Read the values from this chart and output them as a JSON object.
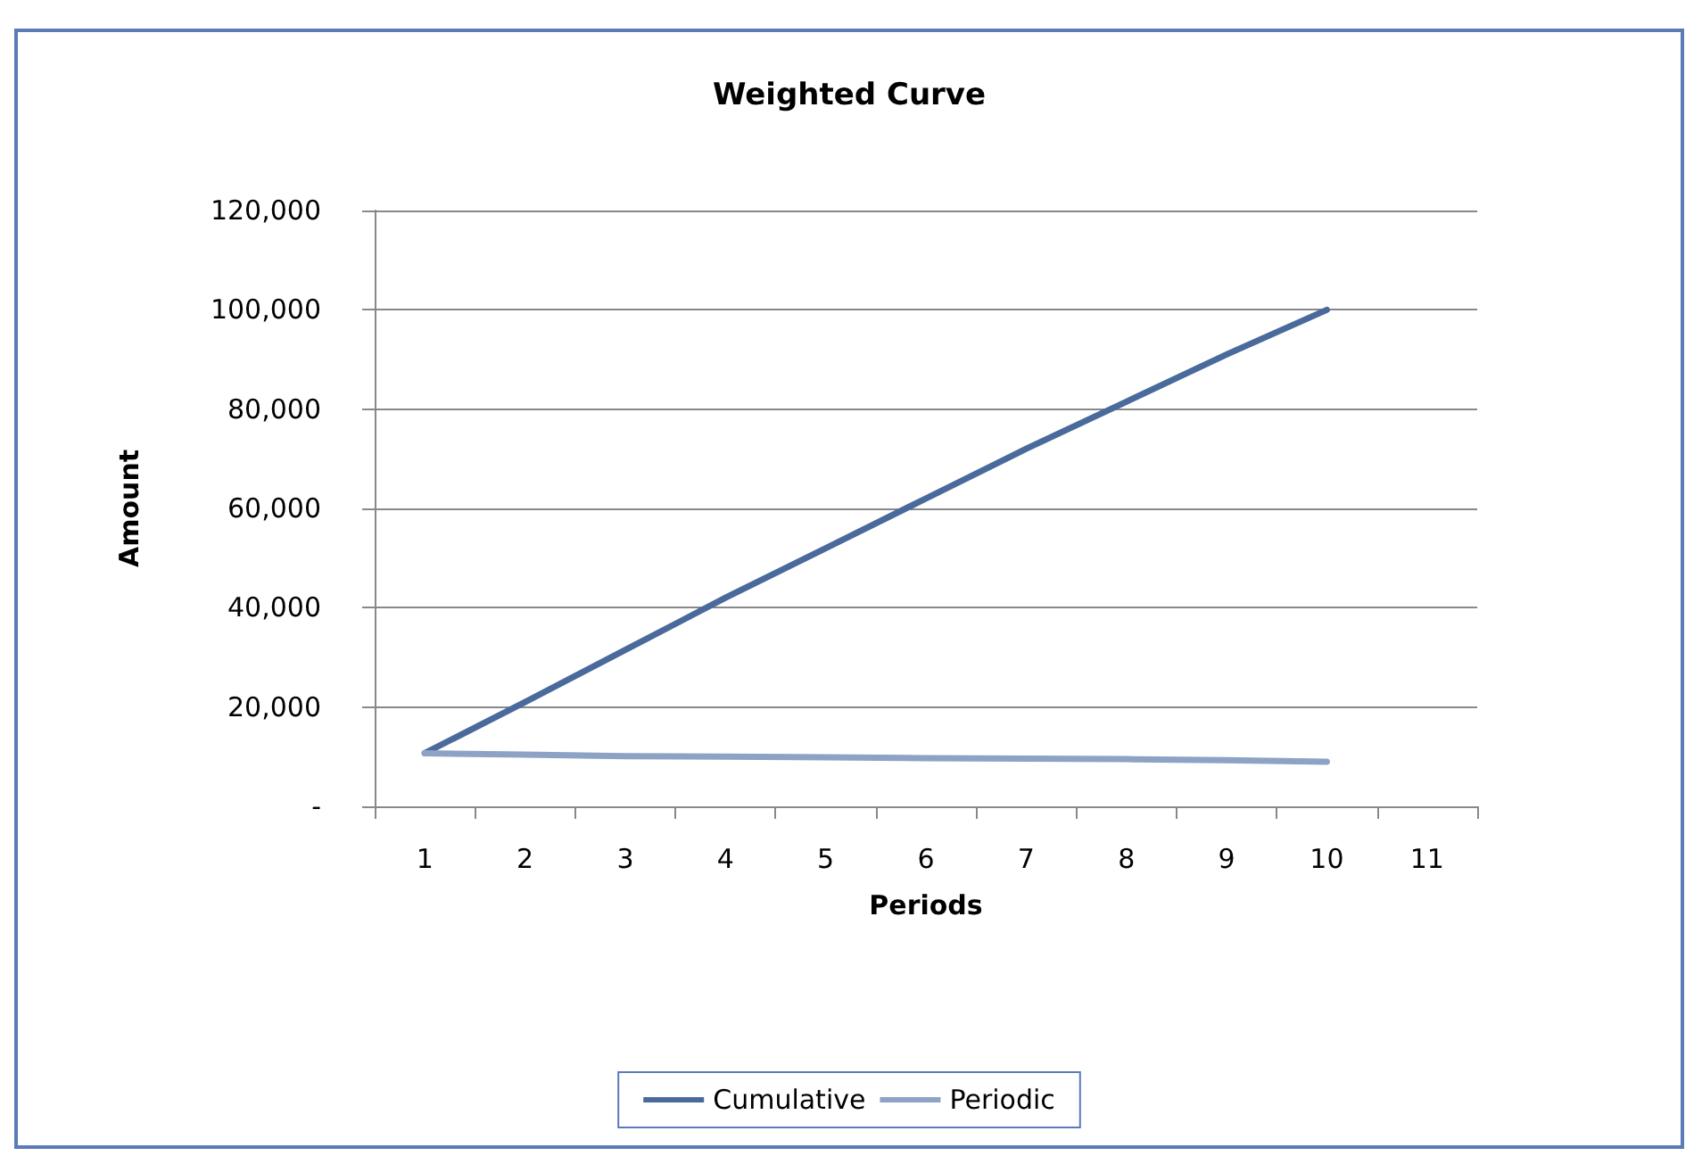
{
  "chart_data": {
    "type": "line",
    "title": "Weighted Curve",
    "xlabel": "Periods",
    "ylabel": "Amount",
    "categories": [
      "1",
      "2",
      "3",
      "4",
      "5",
      "6",
      "7",
      "8",
      "9",
      "10",
      "11"
    ],
    "series": [
      {
        "name": "Cumulative",
        "color": "#4a6a9c",
        "values": [
          10700,
          21000,
          31500,
          42000,
          52000,
          62000,
          72000,
          81500,
          91000,
          100000,
          null
        ]
      },
      {
        "name": "Periodic",
        "color": "#8da2c4",
        "values": [
          10700,
          10400,
          10100,
          10000,
          9900,
          9700,
          9600,
          9500,
          9300,
          9000,
          null
        ]
      }
    ],
    "ylim": [
      0,
      120000
    ],
    "yticks": [
      {
        "value": 0,
        "label": "-"
      },
      {
        "value": 20000,
        "label": "20,000"
      },
      {
        "value": 40000,
        "label": "40,000"
      },
      {
        "value": 60000,
        "label": "60,000"
      },
      {
        "value": 80000,
        "label": "80,000"
      },
      {
        "value": 100000,
        "label": "100,000"
      },
      {
        "value": 120000,
        "label": "120,000"
      }
    ],
    "grid": "y",
    "legend": "bottom",
    "marker": "none",
    "line_style": "solid"
  }
}
